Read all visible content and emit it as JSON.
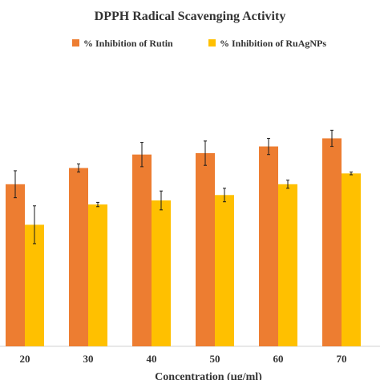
{
  "chart_data": {
    "type": "bar",
    "title": "DPPH Radical Scavenging Activity",
    "xlabel": "Concentration (µg/ml)",
    "ylabel": "",
    "categories": [
      "20",
      "30",
      "40",
      "50",
      "60",
      "70"
    ],
    "ylim": [
      0,
      100
    ],
    "grid": false,
    "legend": "top",
    "error_bars": true,
    "series": [
      {
        "name": "% Inhibition of Rutin",
        "color": "#ED7D31",
        "values": [
          60,
          66,
          71,
          71.5,
          74,
          77
        ],
        "errors": [
          5,
          1.5,
          4.5,
          4.5,
          3,
          3
        ]
      },
      {
        "name": "% Inhibition of RuAgNPs",
        "color": "#FFC000",
        "values": [
          45,
          52.5,
          54,
          56,
          60,
          64
        ],
        "errors": [
          7,
          0.8,
          3.5,
          2.5,
          1.5,
          0.5
        ]
      }
    ]
  }
}
